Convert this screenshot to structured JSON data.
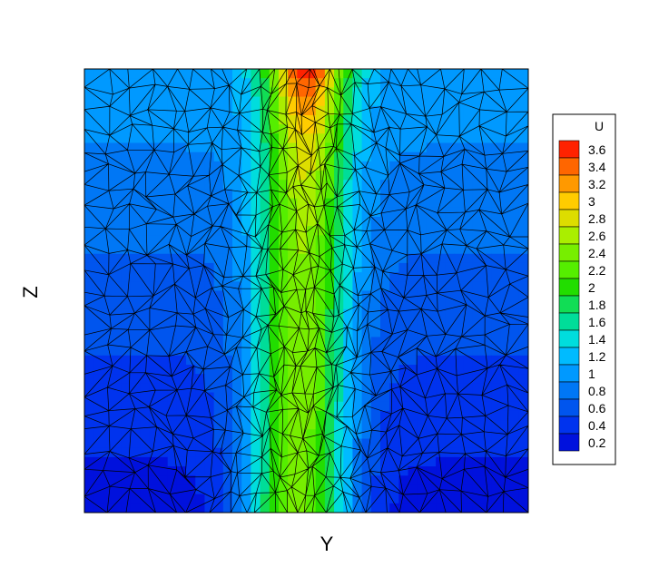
{
  "chart_data": {
    "type": "heatmap",
    "subtype": "filled-contour-on-triangular-mesh",
    "xlabel": "Y",
    "ylabel": "Z",
    "colorbar": {
      "title": "U",
      "levels": [
        0.2,
        0.4,
        0.6,
        0.8,
        1,
        1.2,
        1.4,
        1.6,
        1.8,
        2,
        2.2,
        2.4,
        2.6,
        2.8,
        3,
        3.2,
        3.4,
        3.6
      ],
      "colors": [
        "#0011dd",
        "#0033ee",
        "#0055ee",
        "#0077f5",
        "#0099ff",
        "#00bbff",
        "#00dddd",
        "#00dd99",
        "#11dd55",
        "#22dd00",
        "#55ee00",
        "#77ee00",
        "#aaee00",
        "#dddd00",
        "#ffcc00",
        "#ff9900",
        "#ff6600",
        "#ff2200"
      ],
      "position": "right"
    },
    "field": {
      "description_values": "U is maximal (~3.6) at the top center of the domain, forming a vertical jet band (~2-2.8) down the center; background values ~0.2-1.0 increasing toward the top.",
      "peak_value": 3.6,
      "jet_core_range": [
        1.8,
        2.8
      ],
      "background_range": [
        0.2,
        1.0
      ]
    },
    "grid": false,
    "mesh": true
  }
}
